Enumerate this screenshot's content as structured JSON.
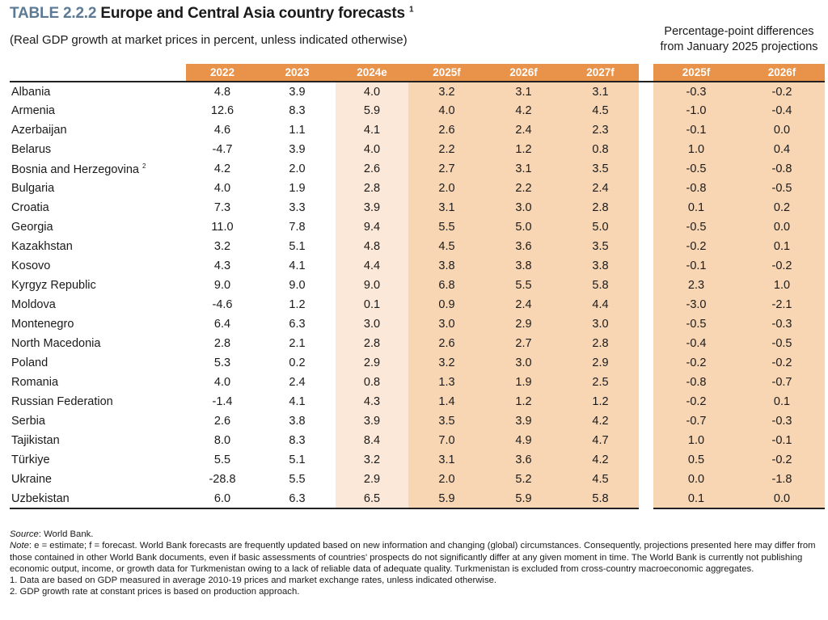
{
  "title": {
    "label": "TABLE 2.2.2",
    "text": "Europe and Central Asia country forecasts",
    "sup": "1"
  },
  "subtitle": "(Real GDP growth at market prices in percent, unless indicated otherwise)",
  "diff_header": [
    "Percentage-point differences",
    "from January 2025 projections"
  ],
  "columns": [
    "2022",
    "2023",
    "2024e",
    "2025f",
    "2026f",
    "2027f"
  ],
  "diff_columns": [
    "2025f",
    "2026f"
  ],
  "rows": [
    {
      "country": "Albania",
      "values": [
        "4.8",
        "3.9",
        "4.0",
        "3.2",
        "3.1",
        "3.1"
      ],
      "diff": [
        "-0.3",
        "-0.2"
      ]
    },
    {
      "country": "Armenia",
      "values": [
        "12.6",
        "8.3",
        "5.9",
        "4.0",
        "4.2",
        "4.5"
      ],
      "diff": [
        "-1.0",
        "-0.4"
      ]
    },
    {
      "country": "Azerbaijan",
      "values": [
        "4.6",
        "1.1",
        "4.1",
        "2.6",
        "2.4",
        "2.3"
      ],
      "diff": [
        "-0.1",
        "0.0"
      ]
    },
    {
      "country": "Belarus",
      "values": [
        "-4.7",
        "3.9",
        "4.0",
        "2.2",
        "1.2",
        "0.8"
      ],
      "diff": [
        "1.0",
        "0.4"
      ]
    },
    {
      "country": "Bosnia and Herzegovina",
      "sup": "2",
      "values": [
        "4.2",
        "2.0",
        "2.6",
        "2.7",
        "3.1",
        "3.5"
      ],
      "diff": [
        "-0.5",
        "-0.8"
      ]
    },
    {
      "country": "Bulgaria",
      "values": [
        "4.0",
        "1.9",
        "2.8",
        "2.0",
        "2.2",
        "2.4"
      ],
      "diff": [
        "-0.8",
        "-0.5"
      ]
    },
    {
      "country": "Croatia",
      "values": [
        "7.3",
        "3.3",
        "3.9",
        "3.1",
        "3.0",
        "2.8"
      ],
      "diff": [
        "0.1",
        "0.2"
      ]
    },
    {
      "country": "Georgia",
      "values": [
        "11.0",
        "7.8",
        "9.4",
        "5.5",
        "5.0",
        "5.0"
      ],
      "diff": [
        "-0.5",
        "0.0"
      ]
    },
    {
      "country": "Kazakhstan",
      "values": [
        "3.2",
        "5.1",
        "4.8",
        "4.5",
        "3.6",
        "3.5"
      ],
      "diff": [
        "-0.2",
        "0.1"
      ]
    },
    {
      "country": "Kosovo",
      "values": [
        "4.3",
        "4.1",
        "4.4",
        "3.8",
        "3.8",
        "3.8"
      ],
      "diff": [
        "-0.1",
        "-0.2"
      ]
    },
    {
      "country": "Kyrgyz Republic",
      "values": [
        "9.0",
        "9.0",
        "9.0",
        "6.8",
        "5.5",
        "5.8"
      ],
      "diff": [
        "2.3",
        "1.0"
      ]
    },
    {
      "country": "Moldova",
      "values": [
        "-4.6",
        "1.2",
        "0.1",
        "0.9",
        "2.4",
        "4.4"
      ],
      "diff": [
        "-3.0",
        "-2.1"
      ]
    },
    {
      "country": "Montenegro",
      "values": [
        "6.4",
        "6.3",
        "3.0",
        "3.0",
        "2.9",
        "3.0"
      ],
      "diff": [
        "-0.5",
        "-0.3"
      ]
    },
    {
      "country": "North Macedonia",
      "values": [
        "2.8",
        "2.1",
        "2.8",
        "2.6",
        "2.7",
        "2.8"
      ],
      "diff": [
        "-0.4",
        "-0.5"
      ]
    },
    {
      "country": "Poland",
      "values": [
        "5.3",
        "0.2",
        "2.9",
        "3.2",
        "3.0",
        "2.9"
      ],
      "diff": [
        "-0.2",
        "-0.2"
      ]
    },
    {
      "country": "Romania",
      "values": [
        "4.0",
        "2.4",
        "0.8",
        "1.3",
        "1.9",
        "2.5"
      ],
      "diff": [
        "-0.8",
        "-0.7"
      ]
    },
    {
      "country": "Russian Federation",
      "values": [
        "-1.4",
        "4.1",
        "4.3",
        "1.4",
        "1.2",
        "1.2"
      ],
      "diff": [
        "-0.2",
        "0.1"
      ]
    },
    {
      "country": "Serbia",
      "values": [
        "2.6",
        "3.8",
        "3.9",
        "3.5",
        "3.9",
        "4.2"
      ],
      "diff": [
        "-0.7",
        "-0.3"
      ]
    },
    {
      "country": "Tajikistan",
      "values": [
        "8.0",
        "8.3",
        "8.4",
        "7.0",
        "4.9",
        "4.7"
      ],
      "diff": [
        "1.0",
        "-0.1"
      ]
    },
    {
      "country": "Türkiye",
      "values": [
        "5.5",
        "5.1",
        "3.2",
        "3.1",
        "3.6",
        "4.2"
      ],
      "diff": [
        "0.5",
        "-0.2"
      ]
    },
    {
      "country": "Ukraine",
      "values": [
        "-28.8",
        "5.5",
        "2.9",
        "2.0",
        "5.2",
        "4.5"
      ],
      "diff": [
        "0.0",
        "-1.8"
      ]
    },
    {
      "country": "Uzbekistan",
      "values": [
        "6.0",
        "6.3",
        "6.5",
        "5.9",
        "5.9",
        "5.8"
      ],
      "diff": [
        "0.1",
        "0.0"
      ]
    }
  ],
  "notes": {
    "source_label": "Source",
    "source": ": World Bank.",
    "note_label": "Note",
    "note": ": e = estimate; f = forecast. World Bank forecasts are frequently updated based on new information and changing (global) circumstances. Consequently, projections presented here may differ from those contained in other World Bank documents, even if basic assessments of countries' prospects do not significantly differ at any given moment in time. The World Bank is currently not publishing economic output, income, or growth data for Turkmenistan owing to a lack of reliable data of adequate quality. Turkmenistan is excluded from cross-country macroeconomic aggregates.",
    "fn1": "1. Data are based on GDP measured in average 2010-19 prices and market exchange rates, unless indicated otherwise.",
    "fn2": "2. GDP growth rate at constant prices is based on production approach."
  }
}
